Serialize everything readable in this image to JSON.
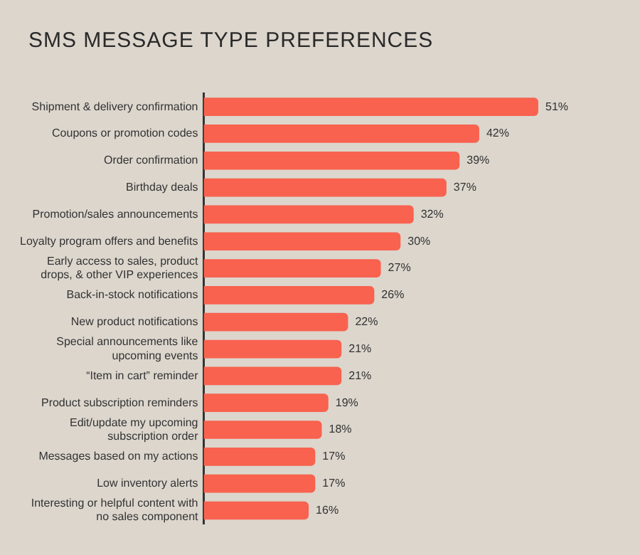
{
  "chart_data": {
    "type": "bar",
    "orientation": "horizontal",
    "title": "SMS MESSAGE TYPE PREFERENCES",
    "categories": [
      "Shipment & delivery confirmation",
      "Coupons or promotion codes",
      "Order confirmation",
      "Birthday deals",
      "Promotion/sales announcements",
      "Loyalty program offers and benefits",
      "Early access to sales, product drops, & other VIP experiences",
      "Back-in-stock notifications",
      "New product notifications",
      "Special announcements like upcoming events",
      "“Item in cart” reminder",
      "Product subscription reminders",
      "Edit/update my upcoming subscription order",
      "Messages based on my actions",
      "Low inventory alerts",
      "Interesting or helpful content with no sales component"
    ],
    "values": [
      51,
      42,
      39,
      37,
      32,
      30,
      27,
      26,
      22,
      21,
      21,
      19,
      18,
      17,
      17,
      16
    ],
    "value_labels": [
      "51%",
      "42%",
      "39%",
      "37%",
      "32%",
      "30%",
      "27%",
      "26%",
      "22%",
      "21%",
      "21%",
      "19%",
      "18%",
      "17%",
      "17%",
      "16%"
    ],
    "color": "#f8624f",
    "tick_labels": "y"
  }
}
